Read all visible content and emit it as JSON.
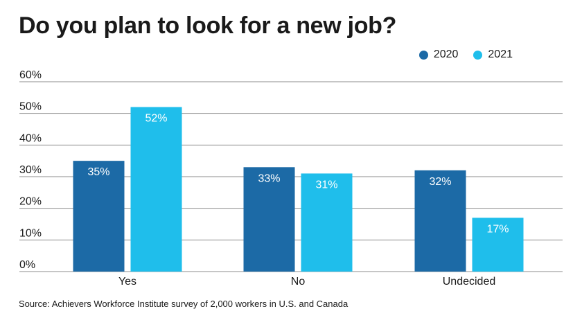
{
  "title": "Do you plan to look for a new job?",
  "source": "Source: Achievers Workforce Institute survey of 2,000 workers in U.S. and Canada",
  "colors": {
    "series_2020": "#1c6aa6",
    "series_2021": "#1fbeeb",
    "gridline": "#8c8c8c",
    "text": "#1a1a1a"
  },
  "chart_data": {
    "type": "bar",
    "title": "Do you plan to look for a new job?",
    "xlabel": "",
    "ylabel": "",
    "categories": [
      "Yes",
      "No",
      "Undecided"
    ],
    "series": [
      {
        "name": "2020",
        "values": [
          35,
          33,
          32
        ],
        "color": "#1c6aa6"
      },
      {
        "name": "2021",
        "values": [
          52,
          31,
          17
        ],
        "color": "#1fbeeb"
      }
    ],
    "ylim": [
      0,
      60
    ],
    "yticks": [
      0,
      10,
      20,
      30,
      40,
      50,
      60
    ],
    "ytick_format": "%",
    "grid": true,
    "legend": "top-right",
    "data_labels": true
  }
}
